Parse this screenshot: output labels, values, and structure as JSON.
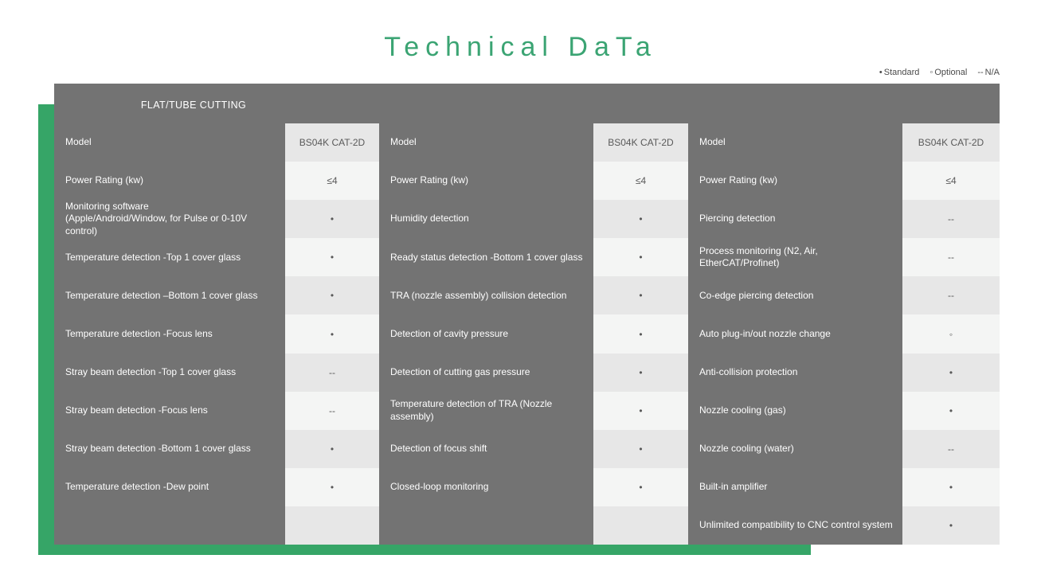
{
  "title": "Technical DaTa",
  "legend": {
    "items": [
      {
        "marker": "•",
        "label": "Standard"
      },
      {
        "marker": "◦",
        "label": "Optional"
      },
      {
        "marker": "--",
        "label": "N/A"
      }
    ]
  },
  "panel": {
    "header": "FLAT/TUBE CUTTING"
  },
  "colors": {
    "accent_green": "#36A567",
    "title_green": "#3BA473",
    "panel_gray": "#737373",
    "row_shade_dark": "#e7e7e7",
    "row_shade_light": "#f4f5f4",
    "value_text": "#595959"
  },
  "tables": [
    {
      "name": "sensing-column-1",
      "rows": [
        {
          "label": "Model",
          "value": "BS04K CAT-2D"
        },
        {
          "label": "Power Rating (kw)",
          "value": "≤4"
        },
        {
          "label": "Monitoring software\n(Apple/Android/Window, for Pulse or 0-10V control)",
          "value": "•"
        },
        {
          "label": "Temperature detection -Top 1 cover glass",
          "value": "•"
        },
        {
          "label": "Temperature detection –Bottom 1 cover glass",
          "value": "•"
        },
        {
          "label": "Temperature detection -Focus lens",
          "value": "•"
        },
        {
          "label": "Stray beam detection -Top 1 cover glass",
          "value": "--"
        },
        {
          "label": "Stray beam detection -Focus lens",
          "value": "--"
        },
        {
          "label": "Stray beam detection -Bottom 1 cover glass",
          "value": "•"
        },
        {
          "label": "Temperature detection -Dew point",
          "value": "•"
        },
        {
          "label": "",
          "value": ""
        }
      ]
    },
    {
      "name": "sensing-column-2",
      "rows": [
        {
          "label": "Model",
          "value": "BS04K CAT-2D"
        },
        {
          "label": "Power Rating (kw)",
          "value": "≤4"
        },
        {
          "label": "Humidity detection",
          "value": "•"
        },
        {
          "label": "Ready status detection -Bottom 1 cover glass",
          "value": "•"
        },
        {
          "label": "TRA (nozzle assembly) collision detection",
          "value": "•"
        },
        {
          "label": "Detection of cavity pressure",
          "value": "•"
        },
        {
          "label": "Detection of cutting gas pressure",
          "value": "•"
        },
        {
          "label": "Temperature detection of TRA (Nozzle assembly)",
          "value": "•"
        },
        {
          "label": "Detection of focus shift",
          "value": "•"
        },
        {
          "label": "Closed-loop monitoring",
          "value": "•"
        },
        {
          "label": "",
          "value": ""
        }
      ]
    },
    {
      "name": "sensing-column-3",
      "rows": [
        {
          "label": "Model",
          "value": "BS04K CAT-2D"
        },
        {
          "label": "Power Rating (kw)",
          "value": "≤4"
        },
        {
          "label": "Piercing detection",
          "value": "--"
        },
        {
          "label": "Process monitoring (N2, Air, EtherCAT/Profinet)",
          "value": "--"
        },
        {
          "label": "Co-edge piercing detection",
          "value": "--"
        },
        {
          "label": "Auto plug-in/out nozzle change",
          "value": "◦"
        },
        {
          "label": "Anti-collision protection",
          "value": "•"
        },
        {
          "label": "Nozzle cooling (gas)",
          "value": "•"
        },
        {
          "label": "Nozzle cooling (water)",
          "value": "--"
        },
        {
          "label": "Built-in amplifier",
          "value": "•"
        },
        {
          "label": "Unlimited compatibility to CNC control system",
          "value": "•"
        }
      ]
    }
  ]
}
